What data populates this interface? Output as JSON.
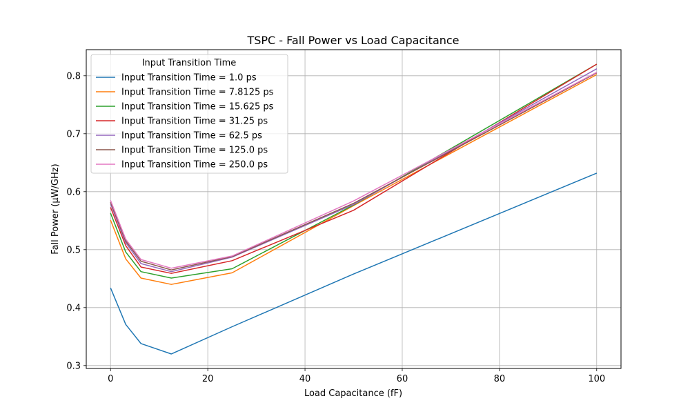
{
  "chart_data": {
    "type": "line",
    "title": "TSPC - Fall Power vs Load Capacitance",
    "xlabel": "Load Capacitance (fF)",
    "ylabel": "Fall Power (µW/GHz)",
    "xlim": [
      -5,
      105
    ],
    "ylim": [
      0.295,
      0.845
    ],
    "xticks": [
      0,
      20,
      40,
      60,
      80,
      100
    ],
    "yticks": [
      0.3,
      0.4,
      0.5,
      0.6,
      0.7,
      0.8
    ],
    "xtick_labels": [
      "0",
      "20",
      "40",
      "60",
      "80",
      "100"
    ],
    "ytick_labels": [
      "0.3",
      "0.4",
      "0.5",
      "0.6",
      "0.7",
      "0.8"
    ],
    "grid": true,
    "legend": {
      "title": "Input Transition Time",
      "placement": "top-left"
    },
    "x": [
      0,
      3.125,
      6.25,
      12.5,
      25,
      50,
      100
    ],
    "series": [
      {
        "name": "Input Transition Time = 1.0 ps",
        "color": "#1f77b4",
        "values": [
          0.434,
          0.371,
          0.338,
          0.32,
          0.367,
          0.458,
          0.632
        ]
      },
      {
        "name": "Input Transition Time = 7.8125 ps",
        "color": "#ff7f0e",
        "values": [
          0.551,
          0.484,
          0.451,
          0.44,
          0.46,
          0.576,
          0.802
        ]
      },
      {
        "name": "Input Transition Time = 15.625 ps",
        "color": "#2ca02c",
        "values": [
          0.563,
          0.496,
          0.462,
          0.451,
          0.467,
          0.577,
          0.82
        ]
      },
      {
        "name": "Input Transition Time = 31.25 ps",
        "color": "#d62728",
        "values": [
          0.573,
          0.507,
          0.47,
          0.459,
          0.481,
          0.568,
          0.82
        ]
      },
      {
        "name": "Input Transition Time = 62.5 ps",
        "color": "#9467bd",
        "values": [
          0.579,
          0.512,
          0.476,
          0.462,
          0.487,
          0.578,
          0.812
        ]
      },
      {
        "name": "Input Transition Time = 125.0 ps",
        "color": "#8c564b",
        "values": [
          0.582,
          0.515,
          0.48,
          0.465,
          0.488,
          0.58,
          0.805
        ]
      },
      {
        "name": "Input Transition Time = 250.0 ps",
        "color": "#e377c2",
        "values": [
          0.585,
          0.518,
          0.483,
          0.468,
          0.489,
          0.584,
          0.806
        ]
      }
    ]
  }
}
